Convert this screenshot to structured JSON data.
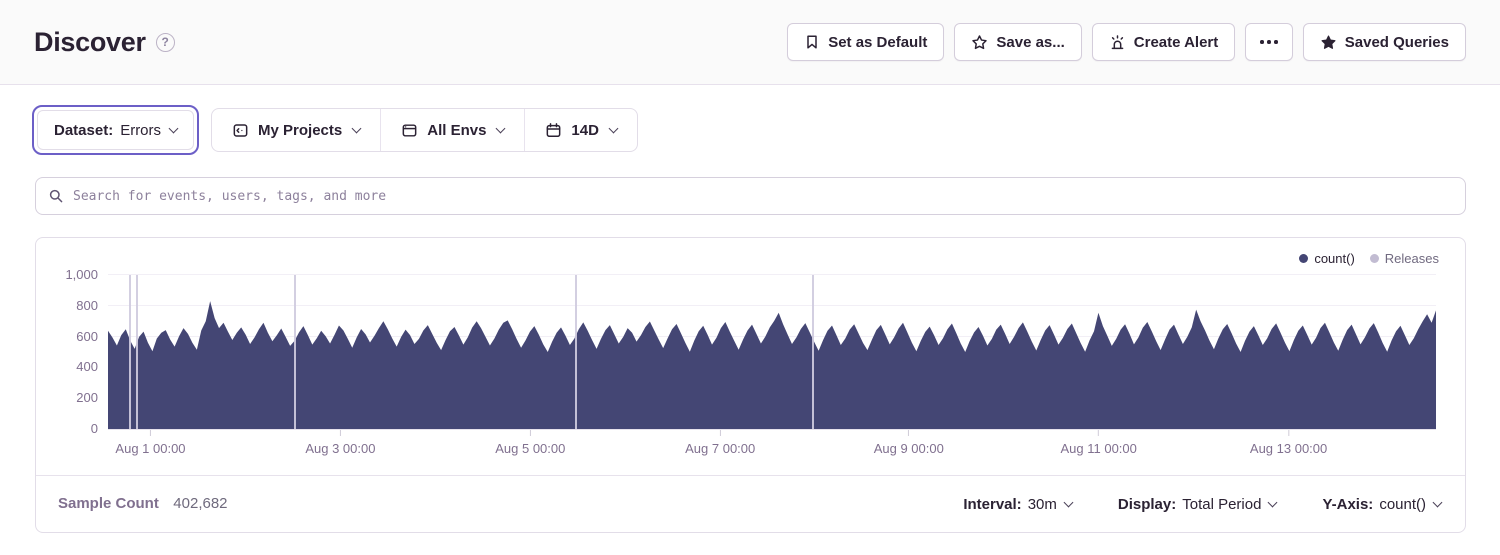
{
  "header": {
    "title": "Discover",
    "help_glyph": "?",
    "buttons": [
      {
        "label": "Set as Default",
        "icon": "bookmark-icon"
      },
      {
        "label": "Save as...",
        "icon": "star-outline-icon"
      },
      {
        "label": "Create Alert",
        "icon": "siren-icon"
      },
      {
        "label": "",
        "icon": "ellipsis-icon"
      },
      {
        "label": "Saved Queries",
        "icon": "star-filled-icon"
      }
    ]
  },
  "filters": {
    "dataset": {
      "label": "Dataset:",
      "value": "Errors"
    },
    "project": {
      "label": "My Projects",
      "icon": "projects-icon"
    },
    "environment": {
      "label": "All Envs",
      "icon": "window-icon"
    },
    "date_range": {
      "label": "14D",
      "icon": "calendar-icon"
    }
  },
  "search": {
    "placeholder": "Search for events, users, tags, and more",
    "icon": "search-icon"
  },
  "chart_data": {
    "type": "area",
    "title": "",
    "interval": "30m",
    "legend": [
      {
        "name": "count()",
        "color": "#444674"
      },
      {
        "name": "Releases",
        "color": "#C2BCD2"
      }
    ],
    "ylim": [
      0,
      1000
    ],
    "y_ticks": [
      "1,000",
      "800",
      "600",
      "400",
      "200",
      "0"
    ],
    "x_ticks": [
      {
        "label": "Aug 1 00:00",
        "pos": 0.032
      },
      {
        "label": "Aug 3 00:00",
        "pos": 0.175
      },
      {
        "label": "Aug 5 00:00",
        "pos": 0.318
      },
      {
        "label": "Aug 7 00:00",
        "pos": 0.461
      },
      {
        "label": "Aug 9 00:00",
        "pos": 0.603
      },
      {
        "label": "Aug 11 00:00",
        "pos": 0.746
      },
      {
        "label": "Aug 13 00:00",
        "pos": 0.889
      }
    ],
    "release_lines": [
      0.016,
      0.021,
      0.14,
      0.352,
      0.53
    ],
    "series": [
      {
        "name": "count()",
        "color": "#444674",
        "values": [
          638,
          595,
          542,
          610,
          648,
          575,
          520,
          598,
          632,
          560,
          505,
          588,
          625,
          642,
          580,
          535,
          602,
          655,
          618,
          560,
          515,
          640,
          700,
          830,
          720,
          655,
          690,
          632,
          578,
          625,
          660,
          612,
          552,
          595,
          648,
          690,
          625,
          570,
          608,
          652,
          598,
          540,
          572,
          628,
          668,
          610,
          548,
          590,
          638,
          602,
          555,
          612,
          672,
          640,
          585,
          528,
          595,
          650,
          615,
          562,
          605,
          655,
          700,
          648,
          588,
          535,
          598,
          645,
          610,
          552,
          585,
          640,
          675,
          618,
          560,
          512,
          578,
          635,
          662,
          608,
          548,
          595,
          658,
          700,
          655,
          598,
          542,
          588,
          645,
          690,
          705,
          648,
          585,
          528,
          575,
          632,
          668,
          612,
          550,
          500,
          568,
          625,
          660,
          605,
          545,
          588,
          648,
          692,
          638,
          578,
          520,
          585,
          642,
          675,
          615,
          555,
          598,
          655,
          625,
          568,
          610,
          662,
          698,
          640,
          580,
          525,
          590,
          648,
          682,
          622,
          558,
          502,
          575,
          635,
          670,
          612,
          548,
          592,
          655,
          695,
          632,
          572,
          515,
          582,
          640,
          678,
          618,
          555,
          600,
          660,
          702,
          755,
          680,
          615,
          552,
          595,
          650,
          688,
          628,
          565,
          508,
          578,
          638,
          672,
          610,
          545,
          588,
          645,
          680,
          620,
          558,
          512,
          580,
          642,
          676,
          615,
          550,
          595,
          652,
          690,
          625,
          560,
          505,
          572,
          630,
          665,
          608,
          545,
          590,
          648,
          685,
          622,
          555,
          500,
          570,
          628,
          662,
          605,
          542,
          585,
          645,
          678,
          618,
          552,
          598,
          655,
          692,
          630,
          568,
          510,
          578,
          640,
          675,
          612,
          548,
          592,
          650,
          685,
          622,
          558,
          502,
          575,
          635,
          755,
          668,
          605,
          540,
          585,
          645,
          680,
          618,
          550,
          595,
          658,
          695,
          635,
          570,
          512,
          582,
          645,
          678,
          615,
          552,
          598,
          660,
          775,
          700,
          640,
          575,
          518,
          588,
          648,
          682,
          620,
          555,
          500,
          572,
          632,
          668,
          608,
          545,
          590,
          650,
          686,
          625,
          560,
          505,
          578,
          638,
          672,
          612,
          548,
          592,
          655,
          690,
          628,
          562,
          508,
          580,
          642,
          678,
          615,
          550,
          595,
          652,
          688,
          625,
          558,
          502,
          575,
          635,
          670,
          608,
          545,
          590,
          648,
          700,
          745,
          690,
          770
        ]
      }
    ]
  },
  "chart_footer": {
    "sample_count_label": "Sample Count",
    "sample_count_value": "402,682",
    "controls": [
      {
        "label": "Interval:",
        "value": "30m"
      },
      {
        "label": "Display:",
        "value": "Total Period"
      },
      {
        "label": "Y-Axis:",
        "value": "count()"
      }
    ]
  }
}
